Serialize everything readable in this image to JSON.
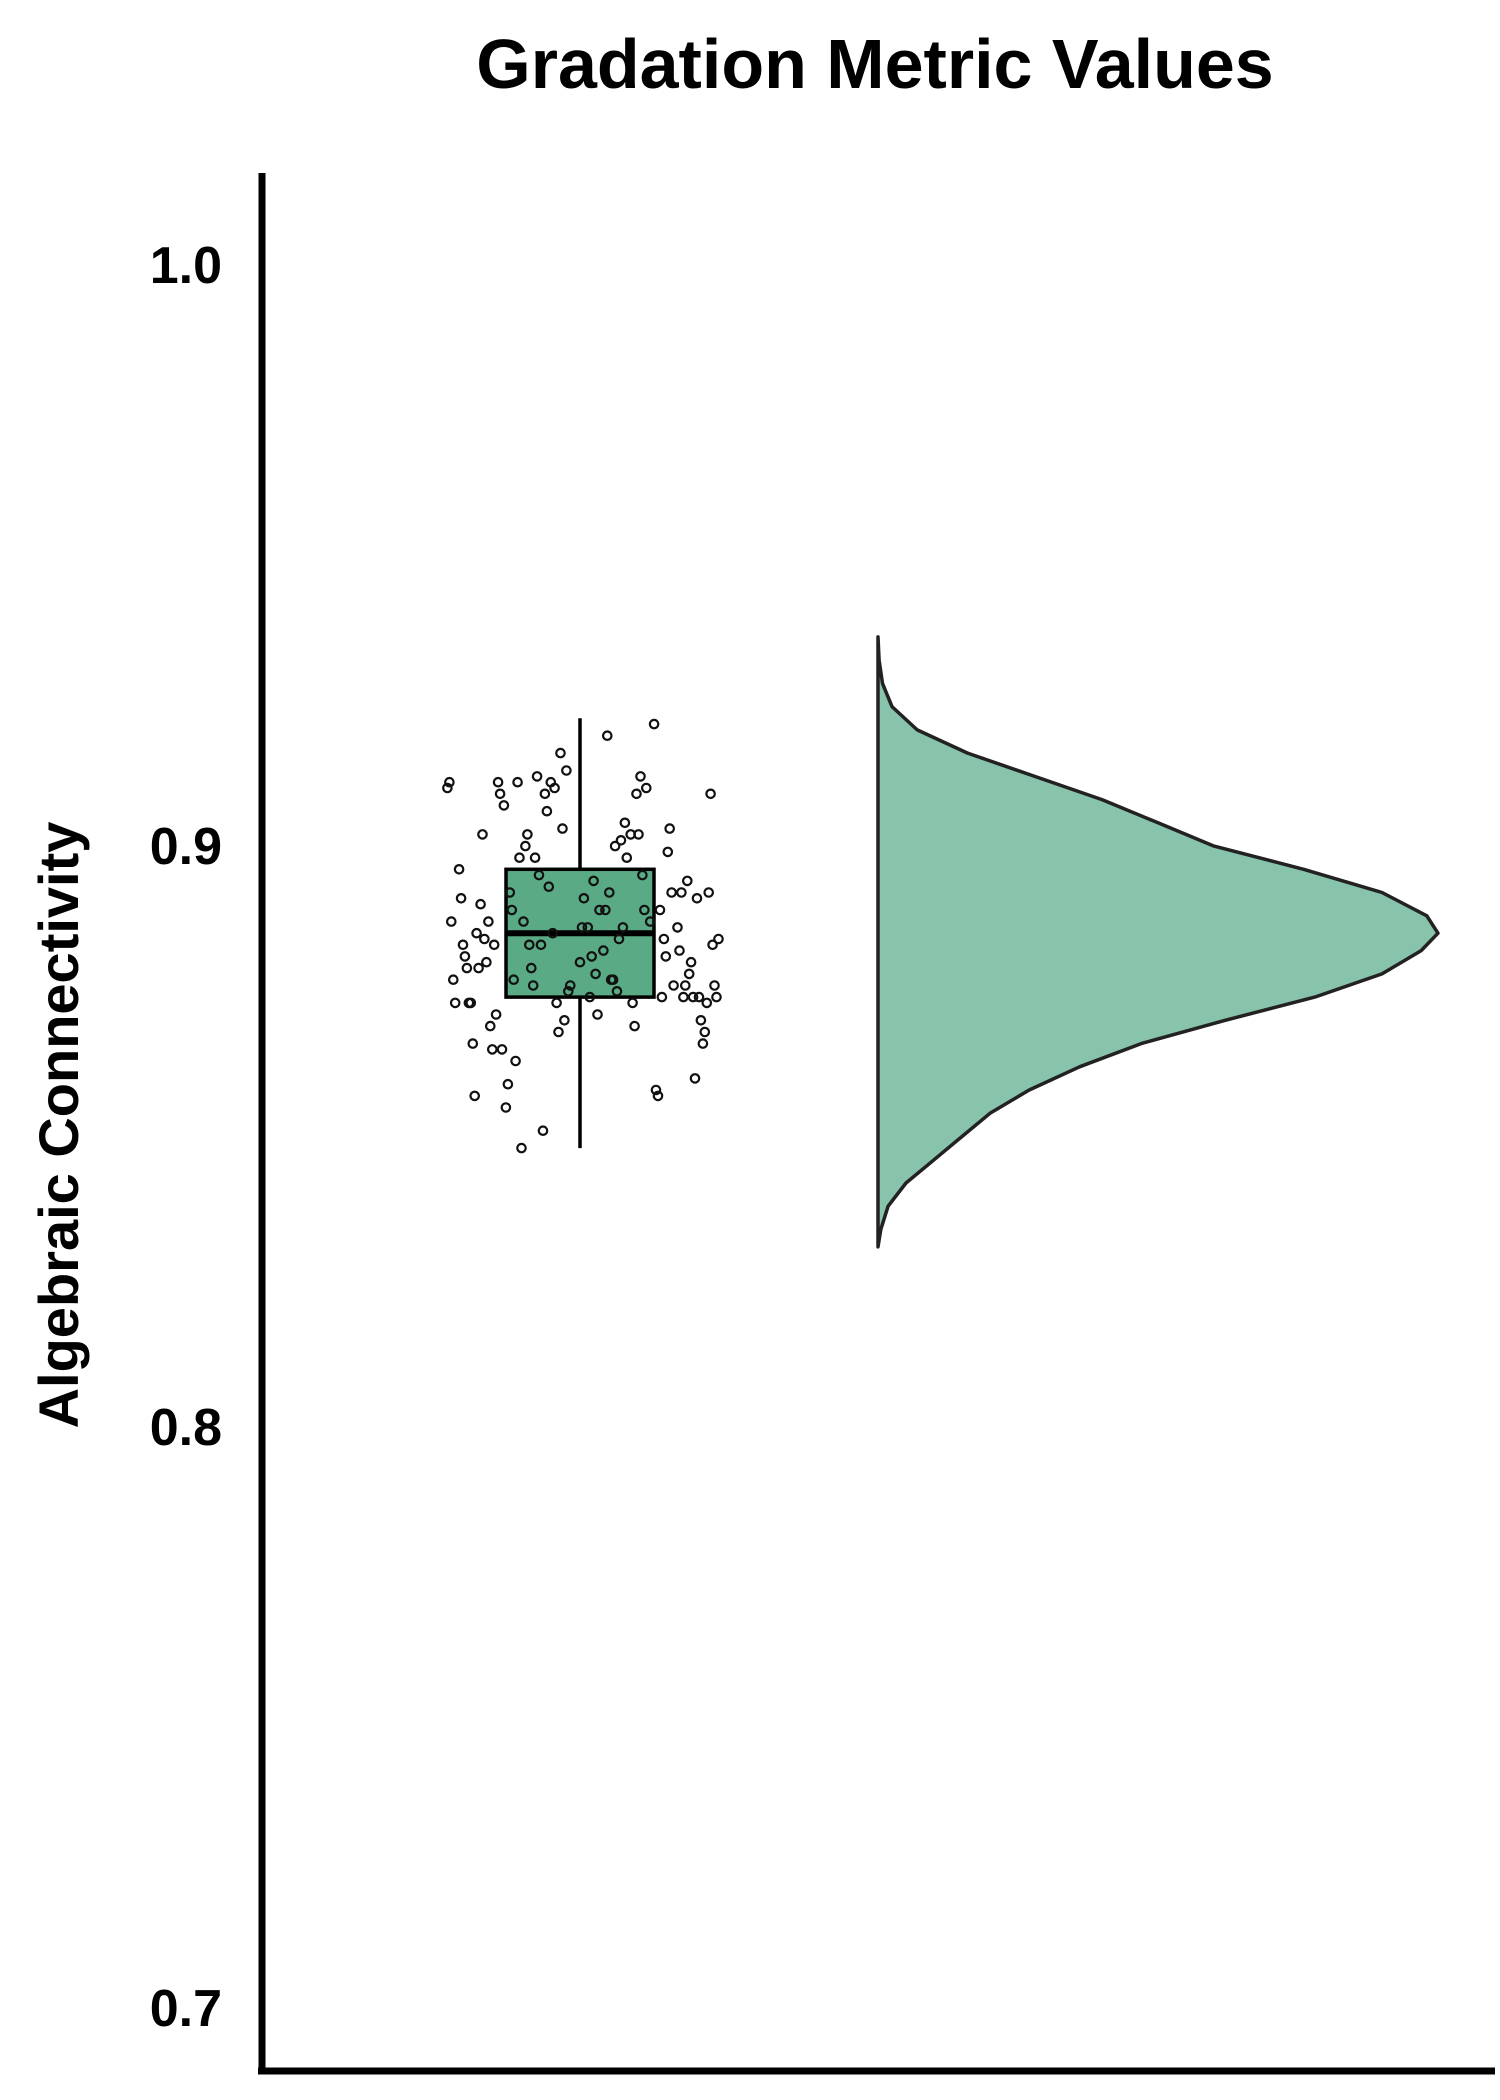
{
  "chart_data": {
    "type": "raincloud",
    "title": "Gradation Metric Values",
    "ylabel": "Algebraic Connectivity",
    "xlabel": "",
    "ylim": [
      0.69,
      1.015
    ],
    "yticks": [
      {
        "value": 0.7,
        "label": "0.7"
      },
      {
        "value": 0.8,
        "label": "0.8"
      },
      {
        "value": 0.9,
        "label": "0.9"
      },
      {
        "value": 1.0,
        "label": "1.0"
      }
    ],
    "grid": false,
    "legend": "none",
    "colors": {
      "box_fill": "#5aab85",
      "violin_fill": "#88c4ab",
      "outline": "#222222"
    },
    "box": {
      "whisker_low": 0.848,
      "q1": 0.874,
      "median": 0.885,
      "q3": 0.896,
      "whisker_high": 0.922
    },
    "density": {
      "y_min": 0.831,
      "y_max": 0.936,
      "peak_y": 0.885,
      "profile": [
        [
          0.831,
          0.0
        ],
        [
          0.834,
          0.005
        ],
        [
          0.838,
          0.018
        ],
        [
          0.842,
          0.05
        ],
        [
          0.846,
          0.1
        ],
        [
          0.85,
          0.15
        ],
        [
          0.854,
          0.2
        ],
        [
          0.858,
          0.27
        ],
        [
          0.862,
          0.36
        ],
        [
          0.866,
          0.47
        ],
        [
          0.87,
          0.62
        ],
        [
          0.874,
          0.78
        ],
        [
          0.878,
          0.9
        ],
        [
          0.882,
          0.97
        ],
        [
          0.885,
          1.0
        ],
        [
          0.888,
          0.98
        ],
        [
          0.892,
          0.9
        ],
        [
          0.896,
          0.76
        ],
        [
          0.9,
          0.6
        ],
        [
          0.904,
          0.5
        ],
        [
          0.908,
          0.4
        ],
        [
          0.912,
          0.28
        ],
        [
          0.916,
          0.16
        ],
        [
          0.92,
          0.07
        ],
        [
          0.924,
          0.025
        ],
        [
          0.928,
          0.008
        ],
        [
          0.932,
          0.002
        ],
        [
          0.936,
          0.0
        ]
      ]
    },
    "points": [
      [
        -0.68,
        0.91
      ],
      [
        -0.67,
        0.911
      ],
      [
        -0.66,
        0.887
      ],
      [
        -0.65,
        0.877
      ],
      [
        -0.64,
        0.873
      ],
      [
        -0.62,
        0.896
      ],
      [
        -0.61,
        0.891
      ],
      [
        -0.6,
        0.883
      ],
      [
        -0.59,
        0.881
      ],
      [
        -0.58,
        0.879
      ],
      [
        -0.57,
        0.873
      ],
      [
        -0.56,
        0.873
      ],
      [
        -0.55,
        0.866
      ],
      [
        -0.54,
        0.857
      ],
      [
        -0.53,
        0.885
      ],
      [
        -0.52,
        0.879
      ],
      [
        -0.51,
        0.89
      ],
      [
        -0.5,
        0.902
      ],
      [
        -0.49,
        0.884
      ],
      [
        -0.48,
        0.88
      ],
      [
        -0.47,
        0.887
      ],
      [
        -0.46,
        0.869
      ],
      [
        -0.45,
        0.865
      ],
      [
        -0.44,
        0.883
      ],
      [
        -0.43,
        0.871
      ],
      [
        -0.42,
        0.911
      ],
      [
        -0.41,
        0.909
      ],
      [
        -0.4,
        0.865
      ],
      [
        -0.39,
        0.907
      ],
      [
        -0.38,
        0.855
      ],
      [
        -0.37,
        0.859
      ],
      [
        -0.36,
        0.892
      ],
      [
        -0.35,
        0.889
      ],
      [
        -0.34,
        0.877
      ],
      [
        -0.33,
        0.863
      ],
      [
        -0.32,
        0.911
      ],
      [
        -0.31,
        0.898
      ],
      [
        -0.3,
        0.848
      ],
      [
        -0.29,
        0.887
      ],
      [
        -0.28,
        0.9
      ],
      [
        -0.27,
        0.902
      ],
      [
        -0.26,
        0.883
      ],
      [
        -0.25,
        0.879
      ],
      [
        -0.24,
        0.876
      ],
      [
        -0.23,
        0.898
      ],
      [
        -0.22,
        0.912
      ],
      [
        -0.21,
        0.895
      ],
      [
        -0.2,
        0.883
      ],
      [
        -0.19,
        0.851
      ],
      [
        -0.18,
        0.909
      ],
      [
        -0.17,
        0.906
      ],
      [
        -0.16,
        0.893
      ],
      [
        -0.15,
        0.911
      ],
      [
        -0.14,
        0.885
      ],
      [
        -0.13,
        0.91
      ],
      [
        -0.12,
        0.873
      ],
      [
        -0.11,
        0.868
      ],
      [
        -0.1,
        0.916
      ],
      [
        -0.09,
        0.903
      ],
      [
        -0.08,
        0.87
      ],
      [
        -0.07,
        0.913
      ],
      [
        -0.06,
        0.875
      ],
      [
        -0.05,
        0.876
      ],
      [
        0.0,
        0.88
      ],
      [
        0.01,
        0.886
      ],
      [
        0.02,
        0.891
      ],
      [
        0.04,
        0.886
      ],
      [
        0.05,
        0.874
      ],
      [
        0.06,
        0.881
      ],
      [
        0.07,
        0.894
      ],
      [
        0.08,
        0.878
      ],
      [
        0.09,
        0.871
      ],
      [
        0.1,
        0.889
      ],
      [
        0.12,
        0.882
      ],
      [
        0.13,
        0.889
      ],
      [
        0.14,
        0.919
      ],
      [
        0.15,
        0.892
      ],
      [
        0.16,
        0.877
      ],
      [
        0.17,
        0.877
      ],
      [
        0.18,
        0.9
      ],
      [
        0.19,
        0.875
      ],
      [
        0.2,
        0.884
      ],
      [
        0.21,
        0.901
      ],
      [
        0.22,
        0.886
      ],
      [
        0.23,
        0.904
      ],
      [
        0.24,
        0.898
      ],
      [
        0.26,
        0.902
      ],
      [
        0.27,
        0.873
      ],
      [
        0.28,
        0.869
      ],
      [
        0.29,
        0.909
      ],
      [
        0.3,
        0.902
      ],
      [
        0.31,
        0.912
      ],
      [
        0.32,
        0.895
      ],
      [
        0.33,
        0.889
      ],
      [
        0.34,
        0.91
      ],
      [
        0.36,
        0.887
      ],
      [
        0.38,
        0.921
      ],
      [
        0.39,
        0.858
      ],
      [
        0.4,
        0.857
      ],
      [
        0.41,
        0.889
      ],
      [
        0.42,
        0.874
      ],
      [
        0.43,
        0.884
      ],
      [
        0.44,
        0.881
      ],
      [
        0.45,
        0.899
      ],
      [
        0.46,
        0.903
      ],
      [
        0.47,
        0.892
      ],
      [
        0.48,
        0.876
      ],
      [
        0.5,
        0.886
      ],
      [
        0.51,
        0.882
      ],
      [
        0.52,
        0.892
      ],
      [
        0.53,
        0.874
      ],
      [
        0.54,
        0.876
      ],
      [
        0.55,
        0.894
      ],
      [
        0.56,
        0.878
      ],
      [
        0.57,
        0.88
      ],
      [
        0.58,
        0.874
      ],
      [
        0.59,
        0.86
      ],
      [
        0.6,
        0.891
      ],
      [
        0.61,
        0.874
      ],
      [
        0.62,
        0.87
      ],
      [
        0.63,
        0.866
      ],
      [
        0.64,
        0.868
      ],
      [
        0.65,
        0.873
      ],
      [
        0.66,
        0.892
      ],
      [
        0.67,
        0.909
      ],
      [
        0.68,
        0.883
      ],
      [
        0.69,
        0.876
      ],
      [
        0.7,
        0.874
      ],
      [
        0.71,
        0.884
      ]
    ]
  }
}
